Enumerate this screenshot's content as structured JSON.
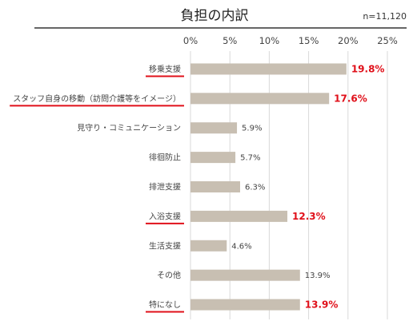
{
  "chart_data": {
    "type": "bar",
    "orientation": "horizontal",
    "title": "負担の内訳",
    "note": "n=11,120",
    "categories": [
      "移乗支援",
      "スタッフ自身の移動（訪問介護等をイメージ）",
      "見守り・コミュニケーション",
      "徘徊防止",
      "排泄支援",
      "入浴支援",
      "生活支援",
      "その他",
      "特になし"
    ],
    "values": [
      19.8,
      17.6,
      5.9,
      5.7,
      6.3,
      12.3,
      4.6,
      13.9,
      13.9
    ],
    "value_labels": [
      "19.8%",
      "17.6%",
      "5.9%",
      "5.7%",
      "6.3%",
      "12.3%",
      "4.6%",
      "13.9%",
      "13.9%"
    ],
    "highlighted": [
      true,
      true,
      false,
      false,
      false,
      true,
      false,
      false,
      true
    ],
    "xlim": [
      0,
      25
    ],
    "xticks": [
      "0%",
      "5%",
      "10%",
      "15%",
      "20%",
      "25%"
    ],
    "grid": true,
    "colors": {
      "bar": "#c8bfb2",
      "highlight": "#e0101a",
      "grid": "#d9d9d9",
      "text": "#444444"
    }
  }
}
